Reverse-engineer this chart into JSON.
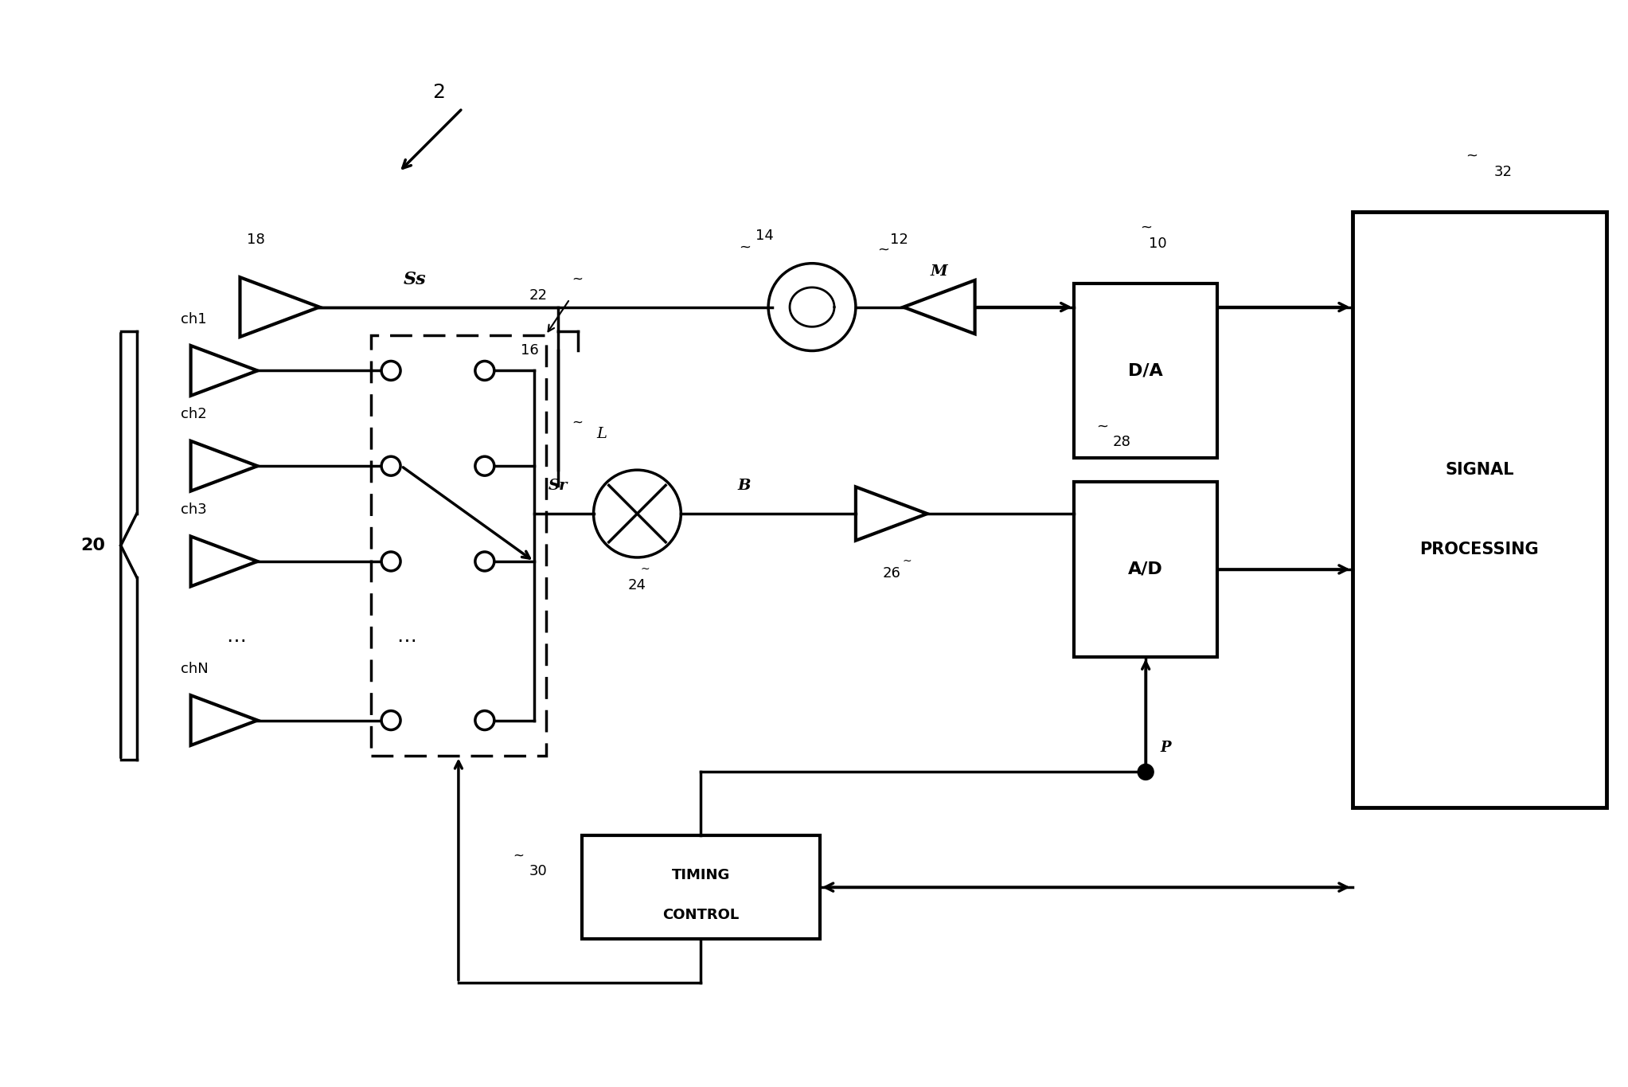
{
  "bg_color": "#ffffff",
  "line_color": "#000000",
  "line_width": 2.5,
  "fig_width": 20.45,
  "fig_height": 13.65,
  "labels": {
    "ref_num": "2",
    "tx_antenna_num": "18",
    "tx_label": "Ss",
    "oscillator_num": "14",
    "amp12_num": "12",
    "amp12_label": "M",
    "da_num": "10",
    "da_label": "D/A",
    "sp_num": "32",
    "sp_label1": "SIGNAL",
    "sp_label2": "PROCESSING",
    "switch_num": "22",
    "split_num": "16",
    "inductor_label": "L",
    "rx_group_num": "20",
    "ch_labels": [
      "ch1",
      "ch2",
      "ch3",
      "⋯",
      "chN"
    ],
    "mixer_num": "24",
    "sr_label": "Sr",
    "b_label": "B",
    "amp26_num": "26",
    "ad_num": "28",
    "ad_label": "A/D",
    "timing_num": "30",
    "timing_label1": "TIMING",
    "timing_label2": "CONTROL",
    "p_label": "P"
  }
}
